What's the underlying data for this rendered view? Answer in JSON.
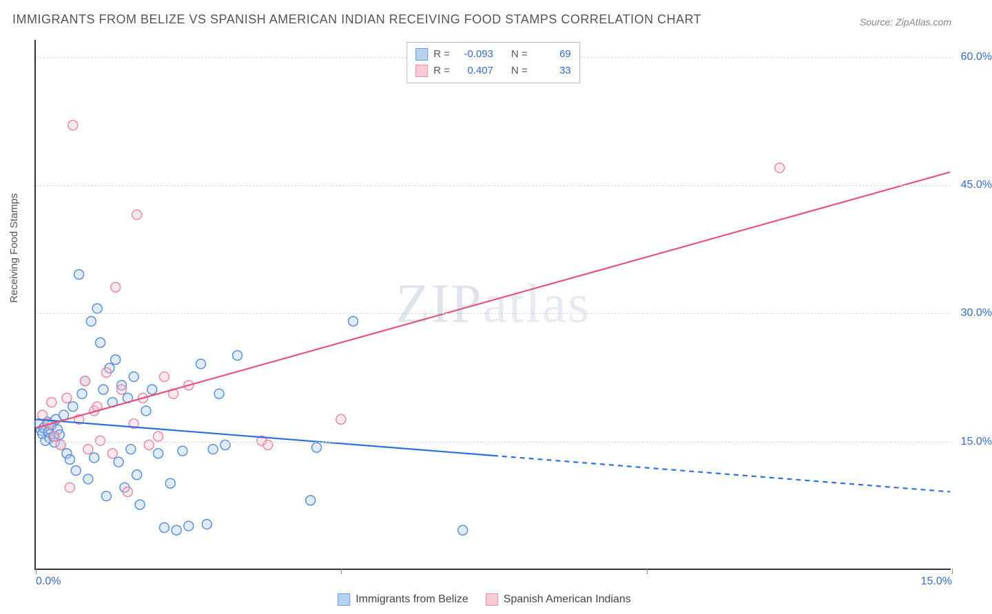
{
  "title": "IMMIGRANTS FROM BELIZE VS SPANISH AMERICAN INDIAN RECEIVING FOOD STAMPS CORRELATION CHART",
  "source": "Source: ZipAtlas.com",
  "watermark": "ZIPatlas",
  "y_axis_label": "Receiving Food Stamps",
  "chart": {
    "type": "scatter-with-regression",
    "xlim": [
      0,
      15
    ],
    "ylim": [
      0,
      62
    ],
    "background_color": "#ffffff",
    "grid_color": "#dcdcdc",
    "grid_dash": "4,4",
    "axis_color": "#333333",
    "y_gridlines": [
      15,
      30,
      45,
      60
    ],
    "y_tick_labels": [
      "15.0%",
      "30.0%",
      "45.0%",
      "60.0%"
    ],
    "x_ticks": [
      0,
      5,
      10,
      15
    ],
    "x_tick_labels": [
      "0.0%",
      "15.0%"
    ],
    "x_tick_label_positions": [
      0,
      15
    ],
    "tick_label_color": "#3969c4",
    "tick_label_fontsize": 16,
    "marker_radius": 7,
    "marker_stroke_width": 1.5,
    "marker_fill_opacity": 0.35,
    "series": [
      {
        "name": "Immigrants from Belize",
        "color_stroke": "#5b8fd6",
        "color_fill": "#a8c6ea",
        "swatch_fill": "#b8d1ee",
        "swatch_border": "#6a9bd8",
        "r_value": "-0.093",
        "n_value": "69",
        "regression": {
          "x1": 0,
          "y1": 17.5,
          "x2": 15,
          "y2": 9.0,
          "solid_until_x": 7.5,
          "color": "#2c6fd6",
          "width": 2.2
        },
        "points": [
          [
            0.05,
            17.0
          ],
          [
            0.08,
            16.2
          ],
          [
            0.1,
            15.8
          ],
          [
            0.12,
            16.5
          ],
          [
            0.15,
            15.0
          ],
          [
            0.18,
            17.2
          ],
          [
            0.2,
            16.0
          ],
          [
            0.22,
            15.3
          ],
          [
            0.25,
            16.8
          ],
          [
            0.28,
            15.5
          ],
          [
            0.3,
            14.8
          ],
          [
            0.32,
            17.5
          ],
          [
            0.35,
            16.3
          ],
          [
            0.38,
            15.7
          ],
          [
            0.4,
            14.5
          ],
          [
            0.45,
            18.0
          ],
          [
            0.5,
            13.5
          ],
          [
            0.55,
            12.8
          ],
          [
            0.6,
            19.0
          ],
          [
            0.65,
            11.5
          ],
          [
            0.7,
            34.5
          ],
          [
            0.75,
            20.5
          ],
          [
            0.8,
            22.0
          ],
          [
            0.85,
            10.5
          ],
          [
            0.9,
            29.0
          ],
          [
            0.95,
            13.0
          ],
          [
            1.0,
            30.5
          ],
          [
            1.05,
            26.5
          ],
          [
            1.1,
            21.0
          ],
          [
            1.15,
            8.5
          ],
          [
            1.2,
            23.5
          ],
          [
            1.25,
            19.5
          ],
          [
            1.3,
            24.5
          ],
          [
            1.35,
            12.5
          ],
          [
            1.4,
            21.5
          ],
          [
            1.45,
            9.5
          ],
          [
            1.5,
            20.0
          ],
          [
            1.55,
            14.0
          ],
          [
            1.6,
            22.5
          ],
          [
            1.65,
            11.0
          ],
          [
            1.7,
            7.5
          ],
          [
            1.8,
            18.5
          ],
          [
            1.9,
            21.0
          ],
          [
            2.0,
            13.5
          ],
          [
            2.1,
            4.8
          ],
          [
            2.2,
            10.0
          ],
          [
            2.3,
            4.5
          ],
          [
            2.4,
            13.8
          ],
          [
            2.5,
            5.0
          ],
          [
            2.7,
            24.0
          ],
          [
            2.8,
            5.2
          ],
          [
            2.9,
            14.0
          ],
          [
            3.0,
            20.5
          ],
          [
            3.1,
            14.5
          ],
          [
            3.3,
            25.0
          ],
          [
            4.5,
            8.0
          ],
          [
            4.6,
            14.2
          ],
          [
            5.2,
            29.0
          ],
          [
            7.0,
            4.5
          ]
        ]
      },
      {
        "name": "Spanish American Indians",
        "color_stroke": "#e68aa5",
        "color_fill": "#f5c0cf",
        "swatch_fill": "#f7cad6",
        "swatch_border": "#e58fa8",
        "r_value": "0.407",
        "n_value": "33",
        "regression": {
          "x1": 0,
          "y1": 16.5,
          "x2": 15,
          "y2": 46.5,
          "solid_until_x": 15,
          "color": "#e5537a",
          "width": 2.2
        },
        "points": [
          [
            0.1,
            18.0
          ],
          [
            0.2,
            17.0
          ],
          [
            0.25,
            19.5
          ],
          [
            0.3,
            15.5
          ],
          [
            0.4,
            14.5
          ],
          [
            0.5,
            20.0
          ],
          [
            0.55,
            9.5
          ],
          [
            0.6,
            52.0
          ],
          [
            0.7,
            17.5
          ],
          [
            0.8,
            22.0
          ],
          [
            0.85,
            14.0
          ],
          [
            0.95,
            18.5
          ],
          [
            1.0,
            19.0
          ],
          [
            1.05,
            15.0
          ],
          [
            1.15,
            23.0
          ],
          [
            1.25,
            13.5
          ],
          [
            1.3,
            33.0
          ],
          [
            1.4,
            21.0
          ],
          [
            1.5,
            9.0
          ],
          [
            1.6,
            17.0
          ],
          [
            1.65,
            41.5
          ],
          [
            1.75,
            20.0
          ],
          [
            1.85,
            14.5
          ],
          [
            2.0,
            15.5
          ],
          [
            2.1,
            22.5
          ],
          [
            2.25,
            20.5
          ],
          [
            2.5,
            21.5
          ],
          [
            3.7,
            15.0
          ],
          [
            3.8,
            14.5
          ],
          [
            5.0,
            17.5
          ],
          [
            12.2,
            47.0
          ]
        ]
      }
    ]
  },
  "legend_top": {
    "r_label": "R =",
    "n_label": "N ="
  },
  "legend_bottom": {
    "items": [
      "Immigrants from Belize",
      "Spanish American Indians"
    ]
  }
}
